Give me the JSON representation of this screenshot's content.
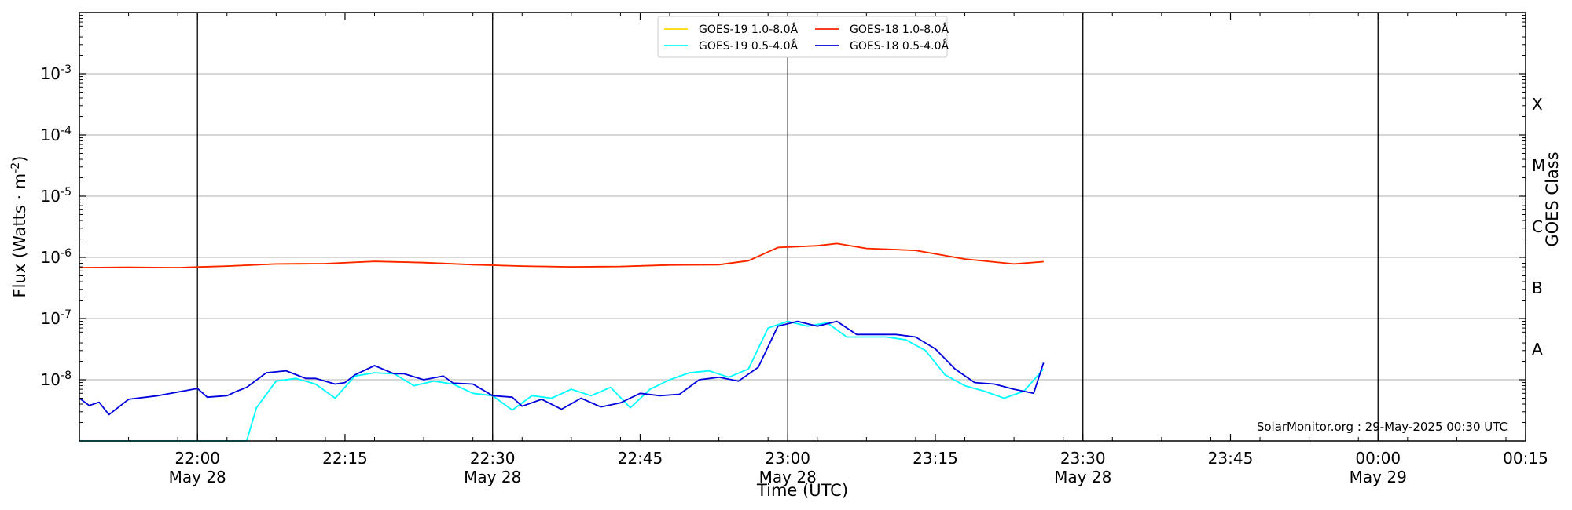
{
  "chart_data": {
    "type": "line",
    "xlabel": "Time (UTC)",
    "ylabel": "Flux (Watts · m",
    "ylabel_sup": "-2",
    "ylabel_close": ")",
    "right_label": "GOES Class",
    "y_scale": "log",
    "ylim": [
      1e-09,
      0.01
    ],
    "y_ticks": [
      {
        "value": 1e-08,
        "base": "10",
        "exp": "-8"
      },
      {
        "value": 1e-07,
        "base": "10",
        "exp": "-7"
      },
      {
        "value": 1e-06,
        "base": "10",
        "exp": "-6"
      },
      {
        "value": 1e-05,
        "base": "10",
        "exp": "-5"
      },
      {
        "value": 0.0001,
        "base": "10",
        "exp": "-4"
      },
      {
        "value": 0.001,
        "base": "10",
        "exp": "-3"
      }
    ],
    "classes": [
      {
        "label": "A",
        "value": 3.16e-08
      },
      {
        "label": "B",
        "value": 3.16e-07
      },
      {
        "label": "C",
        "value": 3.16e-06
      },
      {
        "label": "M",
        "value": 3.16e-05
      },
      {
        "label": "X",
        "value": 0.000316
      }
    ],
    "x_axis": {
      "start": "2025-05-28T21:48",
      "end": "2025-05-29T00:15",
      "ticks": [
        {
          "time": "2025-05-28T22:00",
          "label": "22:00",
          "sublabel": "May 28",
          "major": true
        },
        {
          "time": "2025-05-28T22:15",
          "label": "22:15",
          "sublabel": "",
          "major": false
        },
        {
          "time": "2025-05-28T22:30",
          "label": "22:30",
          "sublabel": "May 28",
          "major": true
        },
        {
          "time": "2025-05-28T22:45",
          "label": "22:45",
          "sublabel": "",
          "major": false
        },
        {
          "time": "2025-05-28T23:00",
          "label": "23:00",
          "sublabel": "May 28",
          "major": true
        },
        {
          "time": "2025-05-28T23:15",
          "label": "23:15",
          "sublabel": "",
          "major": false
        },
        {
          "time": "2025-05-28T23:30",
          "label": "23:30",
          "sublabel": "May 28",
          "major": true
        },
        {
          "time": "2025-05-28T23:45",
          "label": "23:45",
          "sublabel": "",
          "major": false
        },
        {
          "time": "2025-05-29T00:00",
          "label": "00:00",
          "sublabel": "May 29",
          "major": true
        },
        {
          "time": "2025-05-29T00:15",
          "label": "00:15",
          "sublabel": "",
          "major": false
        }
      ]
    },
    "grid": {
      "horizontal": true
    },
    "legend_position": "top-center",
    "credit": "SolarMonitor.org : 29-May-2025 00:30 UTC",
    "series": [
      {
        "name": "GOES-19 1.0-8.0Å",
        "color": "#ffd700",
        "x": [
          "2025-05-28T21:48",
          "2025-05-28T21:53",
          "2025-05-28T21:58",
          "2025-05-28T22:03",
          "2025-05-28T22:08",
          "2025-05-28T22:13",
          "2025-05-28T22:18",
          "2025-05-28T22:23",
          "2025-05-28T22:28",
          "2025-05-28T22:33",
          "2025-05-28T22:38",
          "2025-05-28T22:43",
          "2025-05-28T22:48",
          "2025-05-28T22:53",
          "2025-05-28T22:56",
          "2025-05-28T22:59",
          "2025-05-28T23:03",
          "2025-05-28T23:05",
          "2025-05-28T23:08",
          "2025-05-28T23:13",
          "2025-05-28T23:18",
          "2025-05-28T23:23",
          "2025-05-28T23:26"
        ],
        "y": [
          6.8e-07,
          6.9e-07,
          6.8e-07,
          7.2e-07,
          7.8e-07,
          7.9e-07,
          8.6e-07,
          8.2e-07,
          7.6e-07,
          7.2e-07,
          7e-07,
          7.1e-07,
          7.5e-07,
          7.6e-07,
          8.8e-07,
          1.45e-06,
          1.55e-06,
          1.68e-06,
          1.4e-06,
          1.3e-06,
          9.4e-07,
          7.8e-07,
          8.5e-07
        ]
      },
      {
        "name": "GOES-18 1.0-8.0Å",
        "color": "#ff2000",
        "x": [
          "2025-05-28T21:48",
          "2025-05-28T21:53",
          "2025-05-28T21:58",
          "2025-05-28T22:03",
          "2025-05-28T22:08",
          "2025-05-28T22:13",
          "2025-05-28T22:18",
          "2025-05-28T22:23",
          "2025-05-28T22:28",
          "2025-05-28T22:33",
          "2025-05-28T22:38",
          "2025-05-28T22:43",
          "2025-05-28T22:48",
          "2025-05-28T22:53",
          "2025-05-28T22:56",
          "2025-05-28T22:59",
          "2025-05-28T23:03",
          "2025-05-28T23:05",
          "2025-05-28T23:08",
          "2025-05-28T23:13",
          "2025-05-28T23:18",
          "2025-05-28T23:23",
          "2025-05-28T23:26"
        ],
        "y": [
          6.8e-07,
          6.9e-07,
          6.8e-07,
          7.2e-07,
          7.8e-07,
          7.9e-07,
          8.6e-07,
          8.2e-07,
          7.6e-07,
          7.2e-07,
          7e-07,
          7.1e-07,
          7.5e-07,
          7.6e-07,
          8.8e-07,
          1.45e-06,
          1.55e-06,
          1.68e-06,
          1.4e-06,
          1.3e-06,
          9.4e-07,
          7.8e-07,
          8.5e-07
        ]
      },
      {
        "name": "GOES-19 0.5-4.0Å",
        "color": "#00ffff",
        "x": [
          "2025-05-28T21:48",
          "2025-05-28T22:05",
          "2025-05-28T22:06",
          "2025-05-28T22:08",
          "2025-05-28T22:10",
          "2025-05-28T22:12",
          "2025-05-28T22:14",
          "2025-05-28T22:16",
          "2025-05-28T22:18",
          "2025-05-28T22:20",
          "2025-05-28T22:22",
          "2025-05-28T22:24",
          "2025-05-28T22:26",
          "2025-05-28T22:28",
          "2025-05-28T22:30",
          "2025-05-28T22:32",
          "2025-05-28T22:34",
          "2025-05-28T22:36",
          "2025-05-28T22:38",
          "2025-05-28T22:40",
          "2025-05-28T22:42",
          "2025-05-28T22:44",
          "2025-05-28T22:46",
          "2025-05-28T22:48",
          "2025-05-28T22:50",
          "2025-05-28T22:52",
          "2025-05-28T22:54",
          "2025-05-28T22:56",
          "2025-05-28T22:58",
          "2025-05-28T23:00",
          "2025-05-28T23:02",
          "2025-05-28T23:04",
          "2025-05-28T23:06",
          "2025-05-28T23:08",
          "2025-05-28T23:10",
          "2025-05-28T23:12",
          "2025-05-28T23:14",
          "2025-05-28T23:16",
          "2025-05-28T23:18",
          "2025-05-28T23:20",
          "2025-05-28T23:22",
          "2025-05-28T23:24",
          "2025-05-28T23:26"
        ],
        "y": [
          1e-09,
          1e-09,
          3.5e-09,
          9.5e-09,
          1.05e-08,
          8.5e-09,
          5e-09,
          1.15e-08,
          1.3e-08,
          1.25e-08,
          8e-09,
          9.5e-09,
          8.5e-09,
          6e-09,
          5.5e-09,
          3.2e-09,
          5.5e-09,
          5e-09,
          7e-09,
          5.5e-09,
          7.5e-09,
          3.5e-09,
          7e-09,
          1e-08,
          1.3e-08,
          1.4e-08,
          1.1e-08,
          1.5e-08,
          7e-08,
          9e-08,
          7.5e-08,
          8.5e-08,
          5e-08,
          5e-08,
          5e-08,
          4.5e-08,
          3e-08,
          1.2e-08,
          8e-09,
          6.5e-09,
          5e-09,
          6.5e-09,
          1.5e-08
        ]
      },
      {
        "name": "GOES-18 0.5-4.0Å",
        "color": "#0000dd",
        "x": [
          "2025-05-28T21:48",
          "2025-05-28T21:49",
          "2025-05-28T21:50",
          "2025-05-28T21:51",
          "2025-05-28T21:53",
          "2025-05-28T21:56",
          "2025-05-28T22:00",
          "2025-05-28T22:01",
          "2025-05-28T22:03",
          "2025-05-28T22:04",
          "2025-05-28T22:05",
          "2025-05-28T22:07",
          "2025-05-28T22:09",
          "2025-05-28T22:11",
          "2025-05-28T22:12",
          "2025-05-28T22:14",
          "2025-05-28T22:15",
          "2025-05-28T22:16",
          "2025-05-28T22:18",
          "2025-05-28T22:20",
          "2025-05-28T22:21",
          "2025-05-28T22:23",
          "2025-05-28T22:25",
          "2025-05-28T22:26",
          "2025-05-28T22:28",
          "2025-05-28T22:30",
          "2025-05-28T22:32",
          "2025-05-28T22:33",
          "2025-05-28T22:35",
          "2025-05-28T22:37",
          "2025-05-28T22:39",
          "2025-05-28T22:41",
          "2025-05-28T22:43",
          "2025-05-28T22:45",
          "2025-05-28T22:47",
          "2025-05-28T22:49",
          "2025-05-28T22:51",
          "2025-05-28T22:53",
          "2025-05-28T22:55",
          "2025-05-28T22:57",
          "2025-05-28T22:59",
          "2025-05-28T23:01",
          "2025-05-28T23:03",
          "2025-05-28T23:05",
          "2025-05-28T23:07",
          "2025-05-28T23:09",
          "2025-05-28T23:11",
          "2025-05-28T23:13",
          "2025-05-28T23:15",
          "2025-05-28T23:17",
          "2025-05-28T23:19",
          "2025-05-28T23:21",
          "2025-05-28T23:23",
          "2025-05-28T23:25",
          "2025-05-28T23:26"
        ],
        "y": [
          5e-09,
          3.8e-09,
          4.3e-09,
          2.7e-09,
          4.8e-09,
          5.5e-09,
          7.2e-09,
          5.2e-09,
          5.5e-09,
          6.5e-09,
          7.5e-09,
          1.3e-08,
          1.4e-08,
          1.05e-08,
          1.05e-08,
          8.5e-09,
          9e-09,
          1.2e-08,
          1.7e-08,
          1.25e-08,
          1.25e-08,
          1e-08,
          1.15e-08,
          8.8e-09,
          8.5e-09,
          5.5e-09,
          5.2e-09,
          3.7e-09,
          4.8e-09,
          3.3e-09,
          5e-09,
          3.6e-09,
          4.2e-09,
          6e-09,
          5.5e-09,
          5.8e-09,
          1e-08,
          1.1e-08,
          9.5e-09,
          1.6e-08,
          7.5e-08,
          9e-08,
          7.5e-08,
          9e-08,
          5.5e-08,
          5.5e-08,
          5.5e-08,
          5e-08,
          3.2e-08,
          1.5e-08,
          9e-09,
          8.5e-09,
          7e-09,
          6e-09,
          1.9e-08
        ]
      }
    ]
  }
}
